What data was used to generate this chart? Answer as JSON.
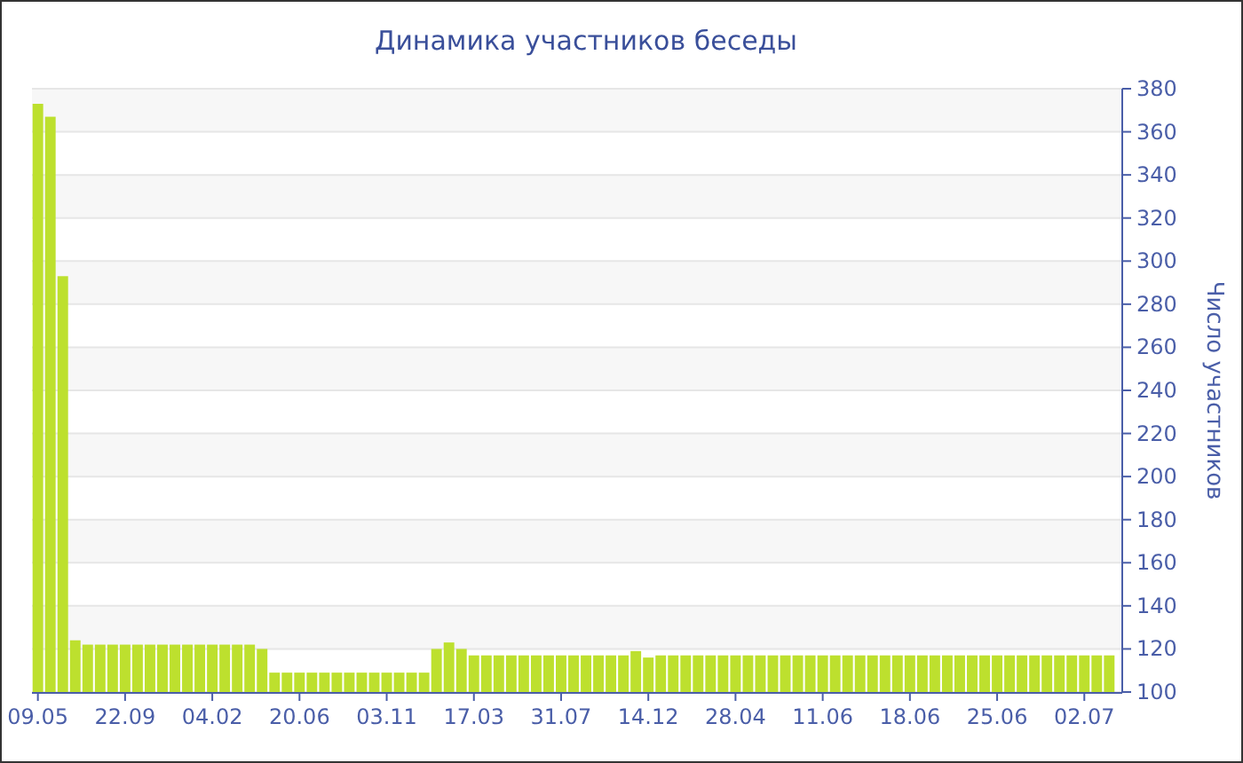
{
  "chart_data": {
    "type": "bar",
    "title": "Динамика участников беседы",
    "ylabel": "Число участников",
    "color": "#bde02e",
    "categories": [
      "09.05",
      null,
      null,
      null,
      null,
      null,
      null,
      "22.09",
      null,
      null,
      null,
      null,
      null,
      null,
      "04.02",
      null,
      null,
      null,
      null,
      null,
      null,
      "20.06",
      null,
      null,
      null,
      null,
      null,
      null,
      "03.11",
      null,
      null,
      null,
      null,
      null,
      null,
      "17.03",
      null,
      null,
      null,
      null,
      null,
      null,
      "31.07",
      null,
      null,
      null,
      null,
      null,
      null,
      "14.12",
      null,
      null,
      null,
      null,
      null,
      null,
      "28.04",
      null,
      null,
      null,
      null,
      null,
      null,
      "11.06",
      null,
      null,
      null,
      null,
      null,
      null,
      "18.06",
      null,
      null,
      null,
      null,
      null,
      null,
      "25.06",
      null,
      null,
      null,
      null,
      null,
      null,
      "02.07",
      null,
      null
    ],
    "values": [
      373,
      367,
      293,
      124,
      122,
      122,
      122,
      122,
      122,
      122,
      122,
      122,
      122,
      122,
      122,
      122,
      122,
      122,
      120,
      109,
      109,
      109,
      109,
      109,
      109,
      109,
      109,
      109,
      109,
      109,
      109,
      109,
      120,
      123,
      120,
      117,
      117,
      117,
      117,
      117,
      117,
      117,
      117,
      117,
      117,
      117,
      117,
      117,
      119,
      116,
      117,
      117,
      117,
      117,
      117,
      117,
      117,
      117,
      117,
      117,
      117,
      117,
      117,
      117,
      117,
      117,
      117,
      117,
      117,
      117,
      117,
      117,
      117,
      117,
      117,
      117,
      117,
      117,
      117,
      117,
      117,
      117,
      117,
      117,
      117,
      117,
      117
    ],
    "ylim": [
      100,
      380
    ],
    "yticks": [
      100,
      120,
      140,
      160,
      180,
      200,
      220,
      240,
      260,
      280,
      300,
      320,
      340,
      360,
      380
    ],
    "grid": "y"
  }
}
